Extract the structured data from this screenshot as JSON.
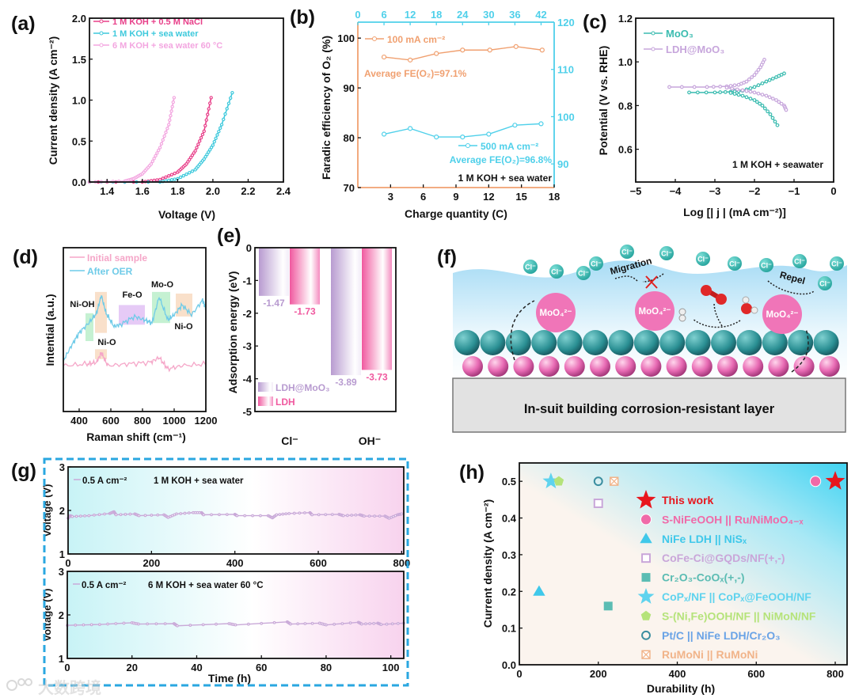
{
  "panel_labels": [
    "(a)",
    "(b)",
    "(c)",
    "(d)",
    "(e)",
    "(f)",
    "(g)",
    "(h)"
  ],
  "watermark": "大数跨境",
  "illustration": {
    "chloride_label": "Cl⁻",
    "molybdate_label": "MoO₄²⁻",
    "migration_label": "Migration",
    "repel_label": "Repel",
    "caption": "In-suit building corrosion-resistant layer"
  },
  "colors": {
    "pink": "#e8408a",
    "cyan": "#3ec9dc",
    "lightpink": "#f3a6e0",
    "orange": "#f0a070",
    "cyan2": "#4fd0ea",
    "teal": "#3bbcb0",
    "lavender": "#c7a6dc",
    "red": "#e8161d"
  },
  "chart_data": [
    {
      "type": "line",
      "title": "",
      "xlabel": "Voltage (V)",
      "ylabel": "Current density (A cm⁻²)",
      "xlim": [
        1.3,
        2.4
      ],
      "ylim": [
        0,
        2.0
      ],
      "xticks": [
        "1.4",
        "1.6",
        "1.8",
        "2.0",
        "2.2",
        "2.4"
      ],
      "yticks": [
        "0.0",
        "0.5",
        "1.0",
        "1.5",
        "2.0"
      ],
      "legend_position": "top-left",
      "series": [
        {
          "name": "1 M KOH + 0.5 M NaCl",
          "color": "#e8408a",
          "points": [
            [
              1.3,
              0
            ],
            [
              1.6,
              0
            ],
            [
              1.7,
              0.03
            ],
            [
              1.8,
              0.12
            ],
            [
              1.85,
              0.22
            ],
            [
              1.9,
              0.38
            ],
            [
              1.95,
              0.62
            ],
            [
              1.99,
              1.03
            ]
          ]
        },
        {
          "name": "1 M KOH + sea water",
          "color": "#3ec9dc",
          "points": [
            [
              1.3,
              0
            ],
            [
              1.7,
              0
            ],
            [
              1.8,
              0.04
            ],
            [
              1.9,
              0.15
            ],
            [
              1.95,
              0.28
            ],
            [
              2.0,
              0.45
            ],
            [
              2.05,
              0.7
            ],
            [
              2.11,
              1.09
            ]
          ]
        },
        {
          "name": "6 M KOH + sea water 60 °C",
          "color": "#f3a6e0",
          "points": [
            [
              1.3,
              0
            ],
            [
              1.5,
              0.01
            ],
            [
              1.55,
              0.04
            ],
            [
              1.6,
              0.1
            ],
            [
              1.65,
              0.22
            ],
            [
              1.7,
              0.42
            ],
            [
              1.75,
              0.7
            ],
            [
              1.78,
              1.03
            ]
          ]
        }
      ]
    },
    {
      "type": "line",
      "xlabel": "Charge quantity (C)",
      "ylabel": "Faradic efficiency of O₂ (%)",
      "xlim": [
        0,
        18
      ],
      "ylim": [
        70,
        103.2
      ],
      "x2lim": [
        0,
        45
      ],
      "y2lim": [
        85,
        120
      ],
      "xticks": [
        "3",
        "6",
        "9",
        "12",
        "15",
        "18"
      ],
      "yticks": [
        "70",
        "80",
        "90",
        "100"
      ],
      "x2ticks": [
        "0",
        "6",
        "12",
        "18",
        "24",
        "30",
        "36",
        "42"
      ],
      "y2ticks": [
        "90",
        "100",
        "110",
        "120"
      ],
      "annotations": [
        "Average FE(O₂)=97.1%",
        "Average FE(O₂)=96.8%",
        "1 M KOH + sea water"
      ],
      "series": [
        {
          "name": "100 mA cm⁻²",
          "axis": "bottom-left",
          "color": "#f0a070",
          "points": [
            [
              2.4,
              96.2
            ],
            [
              4.8,
              95.6
            ],
            [
              7.2,
              96.9
            ],
            [
              9.6,
              97.6
            ],
            [
              12.1,
              97.6
            ],
            [
              14.5,
              98.3
            ],
            [
              16.9,
              97.6
            ]
          ]
        },
        {
          "name": "500 mA cm⁻²",
          "axis": "top-right",
          "color": "#4fd0ea",
          "points": [
            [
              6,
              96.3
            ],
            [
              12,
              97.5
            ],
            [
              18,
              95.7
            ],
            [
              24,
              95.7
            ],
            [
              30,
              96.3
            ],
            [
              36,
              98.2
            ],
            [
              42,
              98.5
            ]
          ]
        }
      ]
    },
    {
      "type": "line",
      "xlabel": "Log [| j | (mA cm⁻²)]",
      "ylabel": "Potential (V vs. RHE)",
      "xlim": [
        -5,
        0
      ],
      "ylim": [
        0.45,
        1.2
      ],
      "xticks": [
        "−5",
        "−4",
        "−3",
        "−2",
        "−1",
        "0"
      ],
      "yticks": [
        "0.6",
        "0.8",
        "1.0",
        "1.2"
      ],
      "annotations": [
        "1 M KOH + seawater"
      ],
      "series": [
        {
          "name": "MoO₃",
          "color": "#3bbcb0",
          "points": [
            [
              -3.65,
              0.86
            ],
            [
              -3.0,
              0.86
            ],
            [
              -2.6,
              0.863
            ],
            [
              -2.3,
              0.868
            ],
            [
              -2.0,
              0.885
            ],
            [
              -1.7,
              0.91
            ],
            [
              -1.45,
              0.93
            ],
            [
              -1.25,
              0.947
            ]
          ],
          "points2": [
            [
              -2.6,
              0.858
            ],
            [
              -2.3,
              0.845
            ],
            [
              -2.0,
              0.825
            ],
            [
              -1.8,
              0.8
            ],
            [
              -1.6,
              0.76
            ],
            [
              -1.42,
              0.71
            ]
          ]
        },
        {
          "name": "LDH@MoO₃",
          "color": "#c7a6dc",
          "points": [
            [
              -4.15,
              0.885
            ],
            [
              -3.2,
              0.885
            ],
            [
              -2.7,
              0.888
            ],
            [
              -2.4,
              0.895
            ],
            [
              -2.2,
              0.91
            ],
            [
              -2.0,
              0.94
            ],
            [
              -1.85,
              0.975
            ],
            [
              -1.75,
              1.01
            ]
          ],
          "points2": [
            [
              -2.7,
              0.882
            ],
            [
              -2.3,
              0.87
            ],
            [
              -2.0,
              0.86
            ],
            [
              -1.7,
              0.845
            ],
            [
              -1.45,
              0.825
            ],
            [
              -1.25,
              0.8
            ],
            [
              -1.2,
              0.78
            ]
          ]
        }
      ]
    },
    {
      "type": "line",
      "xlabel": "Raman shift (cm⁻¹)",
      "ylabel": "Intential (a.u.)",
      "xlim": [
        300,
        1200
      ],
      "ylim": [
        0,
        10
      ],
      "xticks": [
        "400",
        "600",
        "800",
        "1000",
        "1200"
      ],
      "yticks": [],
      "peak_labels": [
        "Ni-OH",
        "Ni-O",
        "Fe-O",
        "Mo-O",
        "Ni-O"
      ],
      "highlight_regions": [
        {
          "x": [
            440,
            490
          ],
          "y": [
            4.3,
            6.0
          ],
          "color": "#9ee8b4"
        },
        {
          "x": [
            500,
            575
          ],
          "y": [
            4.8,
            7.3
          ],
          "color": "#f5cba7"
        },
        {
          "x": [
            650,
            815
          ],
          "y": [
            5.3,
            6.5
          ],
          "color": "#d5a6f0"
        },
        {
          "x": [
            860,
            975
          ],
          "y": [
            5.4,
            7.3
          ],
          "color": "#9ee8b4"
        },
        {
          "x": [
            1010,
            1115
          ],
          "y": [
            5.8,
            7.2
          ],
          "color": "#f5cba7"
        },
        {
          "x": [
            500,
            575
          ],
          "y": [
            3.2,
            3.8
          ],
          "color": "#f5cba7"
        }
      ],
      "series": [
        {
          "name": "Initial sample",
          "color": "#f5a6c8",
          "points": [
            [
              300,
              2.8
            ],
            [
              450,
              2.9
            ],
            [
              510,
              3.0
            ],
            [
              540,
              3.6
            ],
            [
              580,
              2.8
            ],
            [
              700,
              2.9
            ],
            [
              850,
              3.0
            ],
            [
              905,
              3.3
            ],
            [
              960,
              2.6
            ],
            [
              1050,
              2.8
            ],
            [
              1200,
              2.9
            ]
          ]
        },
        {
          "name": "After OER",
          "color": "#6fcbe8",
          "points": [
            [
              300,
              3.1
            ],
            [
              350,
              4.0
            ],
            [
              400,
              4.8
            ],
            [
              460,
              5.4
            ],
            [
              510,
              6.0
            ],
            [
              540,
              7.1
            ],
            [
              570,
              6.0
            ],
            [
              620,
              5.2
            ],
            [
              660,
              5.3
            ],
            [
              750,
              5.8
            ],
            [
              810,
              5.6
            ],
            [
              860,
              5.4
            ],
            [
              905,
              7.0
            ],
            [
              960,
              5.6
            ],
            [
              1000,
              5.9
            ],
            [
              1050,
              6.5
            ],
            [
              1110,
              5.9
            ],
            [
              1180,
              6.8
            ],
            [
              1200,
              6.3
            ]
          ]
        }
      ]
    },
    {
      "type": "bar",
      "xlabel": "",
      "ylabel": "Adsorption energy (eV)",
      "ylim": [
        -5,
        0
      ],
      "yticks": [
        "0",
        "-1",
        "-2",
        "-3",
        "-4",
        "-5"
      ],
      "categories": [
        "Cl⁻",
        "OH⁻"
      ],
      "series": [
        {
          "name": "LDH@MoO₃",
          "color": "#b89bd0",
          "values": [
            -1.47,
            -3.89
          ],
          "labels": [
            "-1.47",
            "-3.89"
          ]
        },
        {
          "name": "LDH",
          "color": "#f0599f",
          "values": [
            -1.73,
            -3.73
          ],
          "labels": [
            "-1.73",
            "-3.73"
          ]
        }
      ]
    },
    {
      "type": "line",
      "xlabel": "",
      "ylabel": "Voltage (V)",
      "xlim": [
        0,
        805
      ],
      "ylim": [
        1,
        3
      ],
      "xticks": [
        "0",
        "200",
        "400",
        "600",
        "800"
      ],
      "yticks": [
        "1",
        "2",
        "3"
      ],
      "legend": "0.5 A cm⁻²",
      "condition": "1 M KOH + sea water",
      "series": [
        {
          "name": "0.5 A cm⁻²",
          "color": "#c9a9d8",
          "points": [
            [
              0,
              1.82
            ],
            [
              5,
              1.88
            ],
            [
              10,
              1.86
            ],
            [
              50,
              1.88
            ],
            [
              100,
              1.93
            ],
            [
              110,
              1.97
            ],
            [
              115,
              1.9
            ],
            [
              160,
              1.92
            ],
            [
              170,
              1.88
            ],
            [
              230,
              1.9
            ],
            [
              240,
              1.84
            ],
            [
              260,
              1.92
            ],
            [
              300,
              1.95
            ],
            [
              320,
              1.95
            ],
            [
              325,
              1.9
            ],
            [
              400,
              1.91
            ],
            [
              405,
              1.88
            ],
            [
              480,
              1.88
            ],
            [
              490,
              1.83
            ],
            [
              500,
              1.9
            ],
            [
              530,
              1.93
            ],
            [
              580,
              1.95
            ],
            [
              585,
              1.9
            ],
            [
              650,
              1.91
            ],
            [
              660,
              1.88
            ],
            [
              700,
              1.9
            ],
            [
              710,
              1.87
            ],
            [
              760,
              1.87
            ],
            [
              770,
              1.82
            ],
            [
              790,
              1.9
            ],
            [
              800,
              1.92
            ]
          ]
        }
      ]
    },
    {
      "type": "line",
      "xlabel": "Time (h)",
      "ylabel": "Voltage (V)",
      "xlim": [
        0,
        104
      ],
      "ylim": [
        1,
        3
      ],
      "xticks": [
        "0",
        "20",
        "40",
        "60",
        "80",
        "100"
      ],
      "yticks": [
        "1",
        "2",
        "3"
      ],
      "legend": "0.5 A cm⁻²",
      "condition": "6 M KOH + sea water 60 °C",
      "series": [
        {
          "name": "0.5 A cm⁻²",
          "color": "#c9a9d8",
          "points": [
            [
              0,
              1.76
            ],
            [
              10,
              1.78
            ],
            [
              20,
              1.82
            ],
            [
              22,
              1.79
            ],
            [
              33,
              1.8
            ],
            [
              34,
              1.75
            ],
            [
              50,
              1.8
            ],
            [
              52,
              1.77
            ],
            [
              68,
              1.84
            ],
            [
              69,
              1.79
            ],
            [
              78,
              1.81
            ],
            [
              80,
              1.77
            ],
            [
              90,
              1.83
            ],
            [
              91,
              1.79
            ],
            [
              96,
              1.81
            ],
            [
              97,
              1.78
            ],
            [
              104,
              1.81
            ]
          ]
        }
      ]
    },
    {
      "type": "scatter",
      "xlabel": "Durability (h)",
      "ylabel": "Current density (A cm⁻²)",
      "xlim": [
        0,
        830
      ],
      "ylim": [
        0,
        0.55
      ],
      "xticks": [
        "0",
        "200",
        "400",
        "600",
        "800"
      ],
      "yticks": [
        "0.0",
        "0.1",
        "0.2",
        "0.3",
        "0.4",
        "0.5"
      ],
      "legend_position": "right",
      "series": [
        {
          "name": "This work",
          "marker": "star",
          "color": "#e8161d",
          "x": 800,
          "y": 0.5
        },
        {
          "name": "S-NiFeOOH || Ru/NiMoO₄₋ₓ",
          "marker": "sphere",
          "color": "#f06aa8",
          "x": 750,
          "y": 0.5
        },
        {
          "name": "NiFe LDH || NiSₓ",
          "marker": "triangle",
          "color": "#3fc8ea",
          "x": 50,
          "y": 0.2
        },
        {
          "name": "CoFe-Ci@GQDs/NF(+,-)",
          "marker": "open-square",
          "color": "#c9a6d9",
          "x": 200,
          "y": 0.44
        },
        {
          "name": "Cr₂O₃-CoOₓ(+,-)",
          "marker": "square",
          "color": "#5bbcb3",
          "x": 225,
          "y": 0.16
        },
        {
          "name": "CoPₓ/NF || CoPₓ@FeOOH/NF",
          "marker": "star",
          "color": "#5fd3ee",
          "x": 80,
          "y": 0.5
        },
        {
          "name": "S-(Ni,Fe)OOH/NF || NiMoN/NF",
          "marker": "pentagon",
          "color": "#b5e37a",
          "x": 100,
          "y": 0.5
        },
        {
          "name": "Pt/C || NiFe LDH/Cr₂O₃",
          "marker": "open-circle",
          "color": "#3b8ea0",
          "text_color": "#6aa3e6",
          "x": 200,
          "y": 0.5
        },
        {
          "name": "RuMoNi || RuMoNi",
          "marker": "crossed-square",
          "color": "#f1b48a",
          "x": 240,
          "y": 0.5
        }
      ]
    }
  ]
}
